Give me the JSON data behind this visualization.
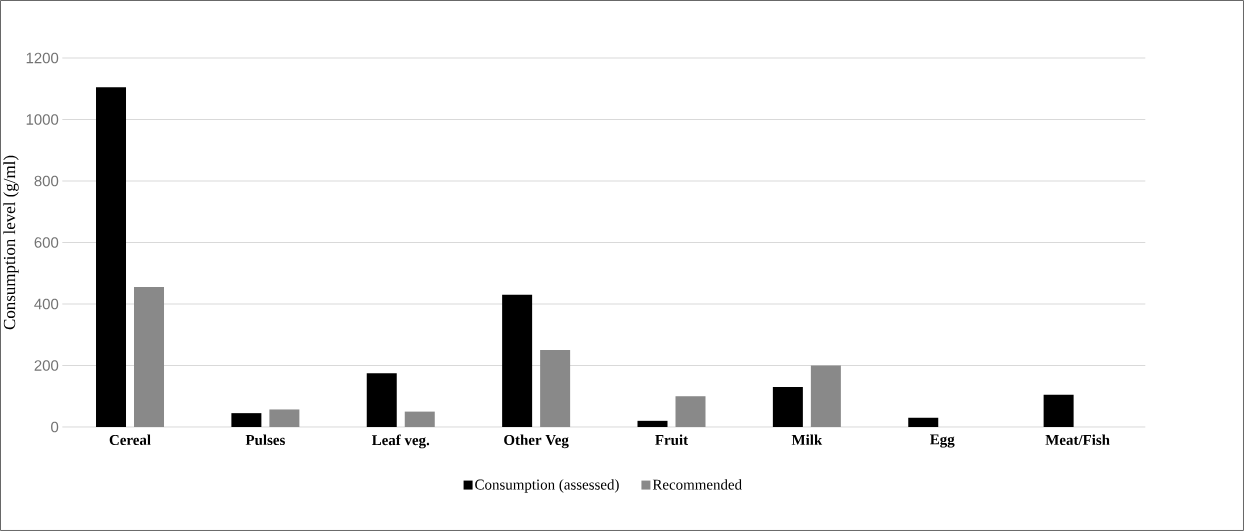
{
  "chart_data": {
    "type": "bar",
    "ylabel": "Consumption level (g/ml)",
    "categories": [
      "Cereal",
      "Pulses",
      "Leaf veg.",
      "Other Veg",
      "Fruit",
      "Milk",
      "Egg",
      "Meat/Fish"
    ],
    "series": [
      {
        "name": "Consumption (assessed)",
        "color": "#000000",
        "values": [
          1105,
          45,
          175,
          430,
          20,
          130,
          30,
          105
        ]
      },
      {
        "name": "Recommended",
        "color": "#898989",
        "values": [
          455,
          57,
          50,
          250,
          100,
          200,
          null,
          null
        ]
      }
    ],
    "ylim": [
      0,
      1200
    ],
    "yticks": [
      0,
      200,
      400,
      600,
      800,
      1000,
      1200
    ],
    "grid": "y",
    "legend": "bottom"
  }
}
